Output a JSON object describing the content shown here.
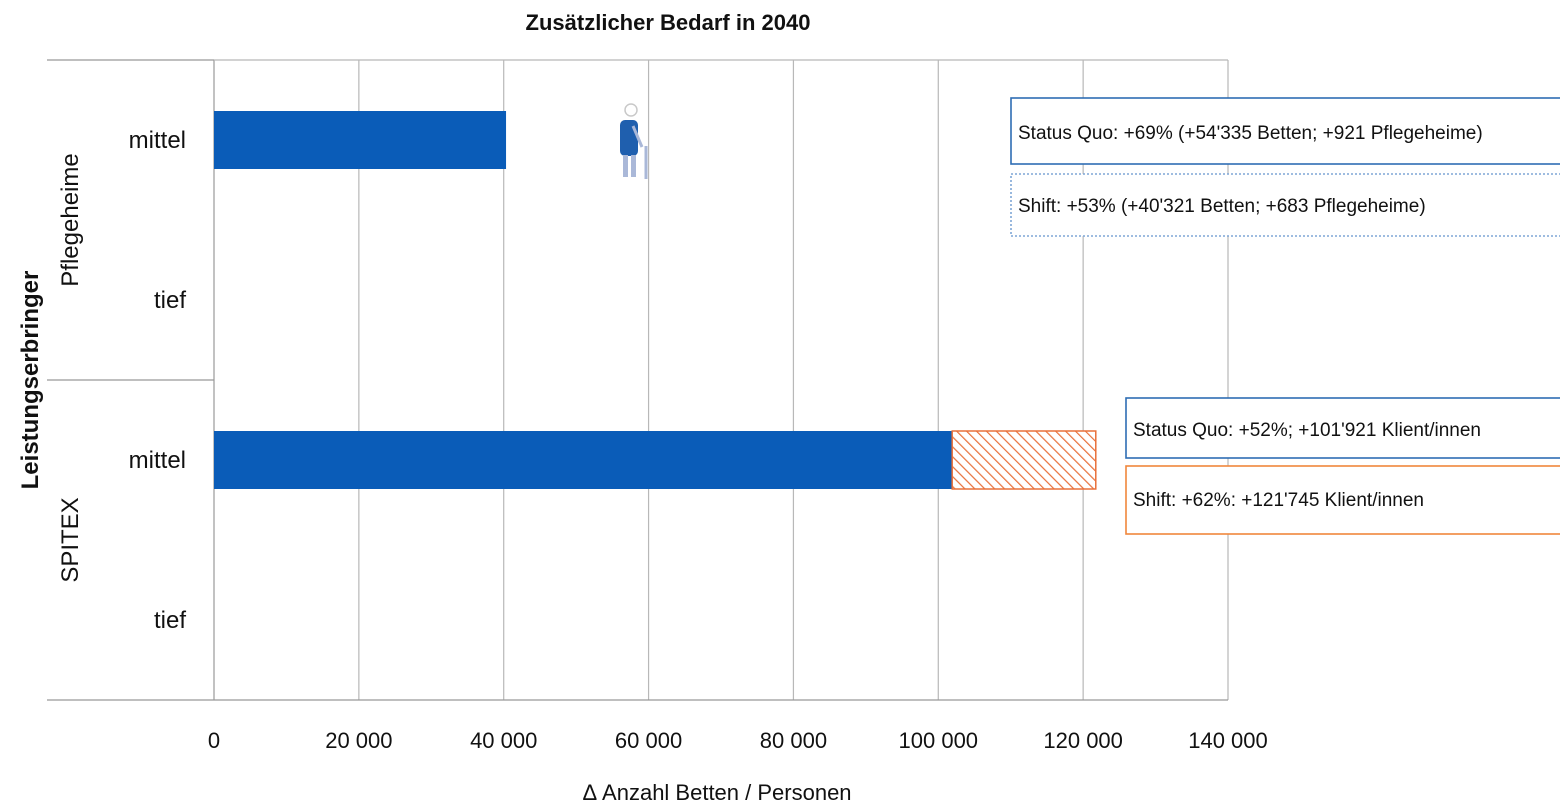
{
  "chart_data": {
    "type": "bar",
    "orientation": "horizontal",
    "title": "Zusätzlicher Bedarf in 2040",
    "xlabel": "Δ Anzahl Betten / Personen",
    "ylabel": "Leistungserbringer",
    "xlim": [
      0,
      140000
    ],
    "x_tick_labels": [
      "0",
      "20 000",
      "40 000",
      "60 000",
      "80 000",
      "100 000",
      "120 000",
      "140 000"
    ],
    "grid": true,
    "groups": [
      {
        "name": "Pflegeheime",
        "categories": [
          {
            "label": "mittel",
            "status_quo": 54335,
            "shift": 40321
          },
          {
            "label": "tief",
            "status_quo": null,
            "shift": null
          }
        ]
      },
      {
        "name": "SPITEX",
        "categories": [
          {
            "label": "mittel",
            "status_quo": 101921,
            "shift": 121745
          },
          {
            "label": "tief",
            "status_quo": null,
            "shift": null
          }
        ]
      }
    ],
    "annotations": [
      {
        "text": "Status Quo: +69% (+54'335 Betten; +921 Pflegeheime)",
        "style": "solid",
        "color": "#2e6db4"
      },
      {
        "text": "Shift: +53% (+40'321 Betten; +683 Pflegeheime)",
        "style": "dotted",
        "color": "#7fa6d6"
      },
      {
        "text": "Status Quo: +52%; +101'921 Klient/innen",
        "style": "solid",
        "color": "#2e6db4"
      },
      {
        "text": "Shift: +62%: +121'745 Klient/innen",
        "style": "solid",
        "color": "#f0873c"
      }
    ],
    "colors": {
      "status_quo": "#0a5cb8",
      "increase": "#e8703a",
      "grid": "#b8b8b8",
      "axis": "#999999"
    }
  }
}
